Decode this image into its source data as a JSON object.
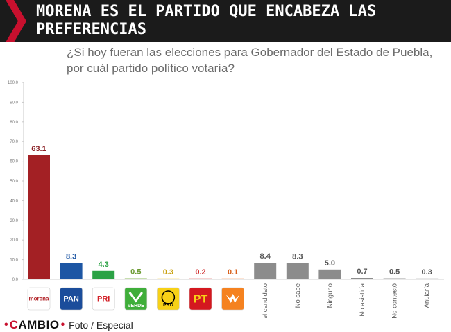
{
  "headline": "MORENA ES EL PARTIDO QUE ENCABEZA LAS PREFERENCIAS",
  "question": "¿Si hoy fueran las elecciones para Gobernador del Estado de Puebla, por cuál partido político votaría?",
  "footer": {
    "brand_c": "C",
    "brand_rest": "AMBIO",
    "dot": "•",
    "credit": "Foto / Especial"
  },
  "colors": {
    "banner_bg": "#1b1b1b",
    "accent_red": "#c8102e"
  },
  "chart_data": {
    "type": "bar",
    "ylim": [
      0,
      100
    ],
    "yticks": [
      "0.0",
      "10.0",
      "20.0",
      "30.0",
      "40.0",
      "50.0",
      "60.0",
      "70.0",
      "80.0",
      "90.0",
      "100.0"
    ],
    "grid": false,
    "categories": [
      {
        "label": "",
        "logo": "morena",
        "logo_text": "morena",
        "logo_bg": "#ffffff",
        "logo_fg": "#b01e23"
      },
      {
        "label": "",
        "logo": "pan",
        "logo_text": "PAN",
        "logo_bg": "#1b4d9b",
        "logo_fg": "#ffffff"
      },
      {
        "label": "",
        "logo": "pri",
        "logo_text": "PRI",
        "logo_bg": "#ffffff",
        "logo_fg": "#d31f26"
      },
      {
        "label": "",
        "logo": "verde",
        "logo_text": "VERDE",
        "logo_bg": "#3fae3a",
        "logo_fg": "#ffffff"
      },
      {
        "label": "",
        "logo": "prd",
        "logo_text": "PRD",
        "logo_bg": "#f7d117",
        "logo_fg": "#000000"
      },
      {
        "label": "",
        "logo": "pt",
        "logo_text": "PT",
        "logo_bg": "#d4181f",
        "logo_fg": "#f7d117"
      },
      {
        "label": "",
        "logo": "mc",
        "logo_text": "",
        "logo_bg": "#f58220",
        "logo_fg": "#ffffff"
      },
      {
        "label": "Por el candidato",
        "logo": null
      },
      {
        "label": "No sabe",
        "logo": null
      },
      {
        "label": "Ninguno",
        "logo": null
      },
      {
        "label": "No asistiría",
        "logo": null
      },
      {
        "label": "No contestó",
        "logo": null
      },
      {
        "label": "Anularía",
        "logo": null
      }
    ],
    "values": [
      63.1,
      8.3,
      4.3,
      0.5,
      0.3,
      0.2,
      0.1,
      8.4,
      8.3,
      5.0,
      0.7,
      0.5,
      0.3
    ],
    "value_labels": [
      "63.1",
      "8.3",
      "4.3",
      "0.5",
      "0.3",
      "0.2",
      "0.1",
      "8.4",
      "8.3",
      "5.0",
      "0.7",
      "0.5",
      "0.3"
    ],
    "bar_colors": [
      "#a32024",
      "#1d56a4",
      "#2ba245",
      "#7bb242",
      "#f2c31a",
      "#cc1d1d",
      "#ee6c1f",
      "#8c8c8c",
      "#8c8c8c",
      "#8c8c8c",
      "#8c8c8c",
      "#8c8c8c",
      "#8c8c8c"
    ],
    "label_colors": [
      "#8b2226",
      "#1d56a4",
      "#2ba245",
      "#6b9a31",
      "#c9a10f",
      "#cc1d1d",
      "#d8601b",
      "#555555",
      "#555555",
      "#555555",
      "#555555",
      "#555555",
      "#555555"
    ]
  }
}
